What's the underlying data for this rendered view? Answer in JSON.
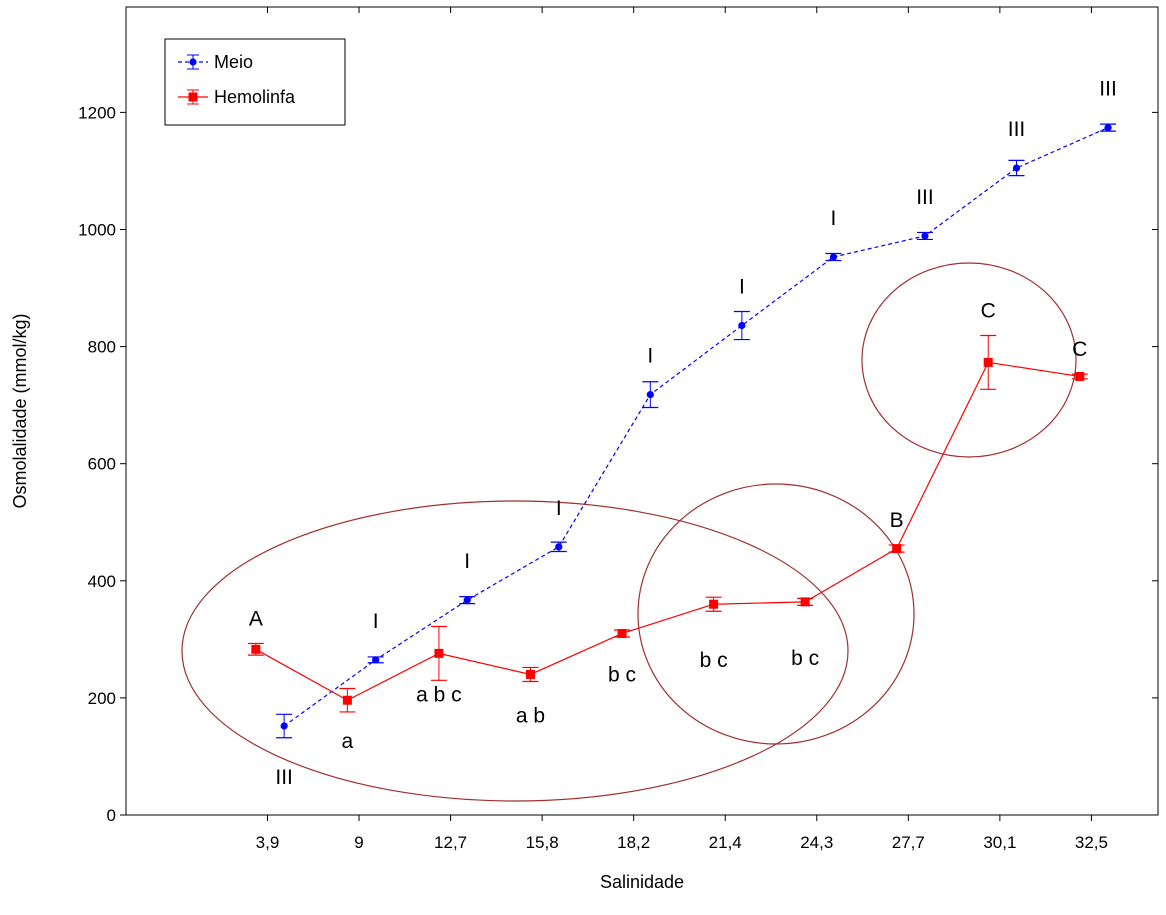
{
  "chart_data": {
    "type": "line",
    "title": "",
    "xlabel": "Salinidade",
    "ylabel": "Osmolalidade (mmol/kg)",
    "categories": [
      "3,9",
      "9",
      "12,7",
      "15,8",
      "18,2",
      "21,4",
      "24,3",
      "27,7",
      "30,1",
      "32,5"
    ],
    "ylim": [
      0,
      1380
    ],
    "yticks": [
      "0",
      "200",
      "400",
      "600",
      "800",
      "1000",
      "1200"
    ],
    "grid": false,
    "legend_position": "top-left",
    "series": [
      {
        "name": "Meio",
        "color": "#0000ff",
        "line_style": "dashed",
        "marker": "circle",
        "x": [
          4.5,
          10.0,
          15.5,
          21.0,
          26.5,
          32.0,
          37.5,
          43.0,
          48.5,
          54.0
        ],
        "values": [
          152,
          265,
          367,
          458,
          718,
          836,
          953,
          989,
          1105,
          1174
        ],
        "errors": [
          20,
          5,
          6,
          8,
          22,
          24,
          6,
          6,
          13,
          6
        ],
        "labels": [
          "III",
          "I",
          "I",
          "I",
          "I",
          "I",
          "I",
          "III",
          "III",
          "III"
        ]
      },
      {
        "name": "Hemolinfa",
        "color": "#ff0000",
        "line_style": "solid",
        "marker": "square",
        "x": [
          2.8,
          8.3,
          13.8,
          19.3,
          24.8,
          30.3,
          35.8,
          41.3,
          46.8,
          52.3
        ],
        "values": [
          283,
          196,
          276,
          240,
          310,
          360,
          364,
          455,
          773,
          749
        ],
        "errors": [
          10,
          20,
          46,
          12,
          6,
          12,
          6,
          6,
          46,
          4
        ],
        "labels": [
          "A",
          "a",
          "a b c",
          "a b",
          "b c",
          "b c",
          "b c",
          "B",
          "C",
          "C"
        ]
      }
    ]
  }
}
